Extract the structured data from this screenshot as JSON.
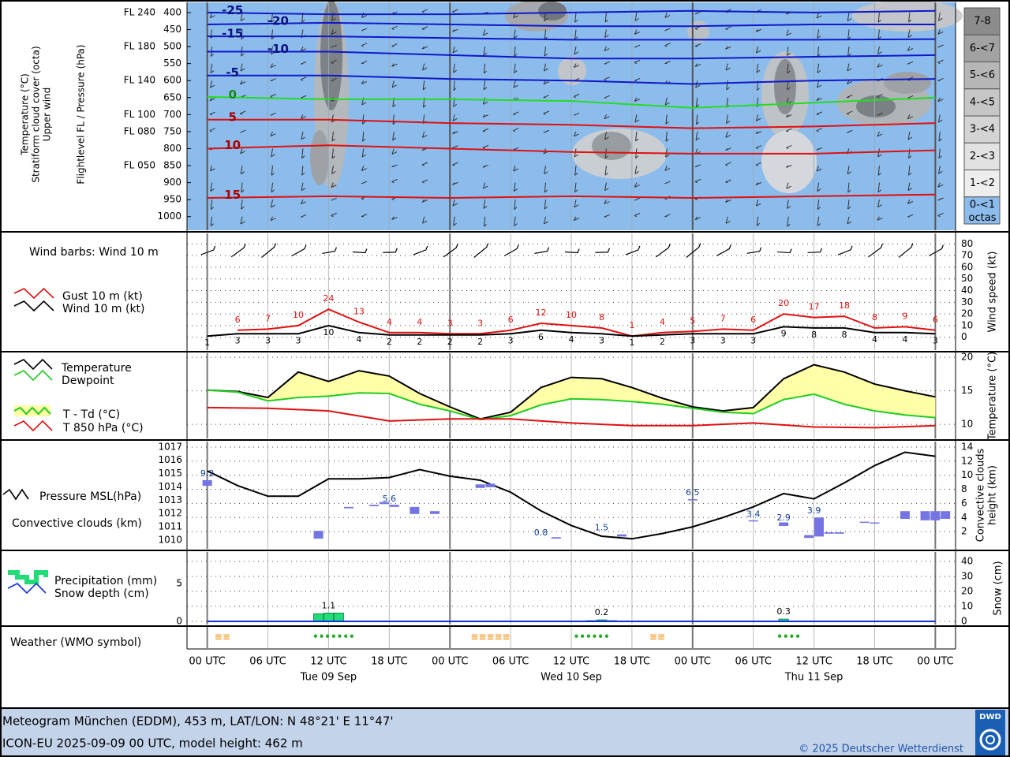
{
  "time_axis": {
    "xlim": [
      -2,
      74
    ],
    "xticks": [
      {
        "value": 0,
        "label": "00 UTC"
      },
      {
        "value": 6,
        "label": "06 UTC"
      },
      {
        "value": 12,
        "label": "12 UTC"
      },
      {
        "value": 18,
        "label": "18 UTC"
      },
      {
        "value": 24,
        "label": "00 UTC"
      },
      {
        "value": 30,
        "label": "06 UTC"
      },
      {
        "value": 36,
        "label": "12 UTC"
      },
      {
        "value": 42,
        "label": "18 UTC"
      },
      {
        "value": 48,
        "label": "00 UTC"
      },
      {
        "value": 54,
        "label": "06 UTC"
      },
      {
        "value": 60,
        "label": "12 UTC"
      },
      {
        "value": 66,
        "label": "18 UTC"
      },
      {
        "value": 72,
        "label": "00 UTC"
      }
    ],
    "dates": [
      {
        "value": 12,
        "label": "Tue 09 Sep"
      },
      {
        "value": 36,
        "label": "Wed 10 Sep"
      },
      {
        "value": 60,
        "label": "Thu 11 Sep"
      }
    ]
  },
  "chart_data": [
    {
      "type": "cross-section",
      "ylabels": [
        "Temperature (°C)",
        "Stratiform cloud cover (octa)",
        "Upper wind"
      ],
      "ylabel": "Flightlevel FL / Pressure (hPa)",
      "ylim": [
        1040,
        370
      ],
      "yticks": [
        400,
        450,
        500,
        550,
        600,
        650,
        700,
        750,
        800,
        850,
        900,
        950,
        1000
      ],
      "fl_ticks": [
        {
          "value": 400,
          "label": "FL 240"
        },
        {
          "value": 500,
          "label": "FL 180"
        },
        {
          "value": 600,
          "label": "FL 140"
        },
        {
          "value": 700,
          "label": "FL 100"
        },
        {
          "value": 750,
          "label": "FL 080"
        },
        {
          "value": 850,
          "label": "FL 050"
        }
      ],
      "x": [
        0,
        12,
        24,
        36,
        48,
        60,
        72
      ],
      "series": [
        {
          "name": -25,
          "color": "#1018c8",
          "values": [
            400,
            405,
            405,
            400,
            395,
            400,
            395
          ]
        },
        {
          "name": -20,
          "color": "#1018c8",
          "values": [
            435,
            430,
            435,
            440,
            440,
            435,
            435
          ]
        },
        {
          "name": -15,
          "color": "#1018c8",
          "values": [
            470,
            470,
            475,
            480,
            480,
            480,
            478
          ]
        },
        {
          "name": -10,
          "color": "#1018c8",
          "values": [
            515,
            515,
            525,
            535,
            535,
            530,
            525
          ]
        },
        {
          "name": -5,
          "color": "#1018c8",
          "values": [
            585,
            585,
            595,
            600,
            610,
            600,
            595
          ]
        },
        {
          "name": 0,
          "color": "#22dd22",
          "values": [
            648,
            655,
            655,
            660,
            680,
            665,
            650
          ]
        },
        {
          "name": 5,
          "color": "#e01010",
          "values": [
            715,
            715,
            725,
            730,
            740,
            735,
            725
          ]
        },
        {
          "name": 10,
          "color": "#e01010",
          "values": [
            800,
            790,
            800,
            810,
            815,
            815,
            805
          ]
        },
        {
          "name": 15,
          "color": "#e01010",
          "values": [
            945,
            940,
            945,
            940,
            945,
            940,
            935
          ]
        }
      ],
      "legend": {
        "title": "octas",
        "items": [
          {
            "label": "7-8",
            "color": "#8c8c8c"
          },
          {
            "label": "6-<7",
            "color": "#a2a2a2"
          },
          {
            "label": "5-<6",
            "color": "#b6b6b6"
          },
          {
            "label": "4-<5",
            "color": "#c6c6c6"
          },
          {
            "label": "3-<4",
            "color": "#d4d4d4"
          },
          {
            "label": "2-<3",
            "color": "#e2e2e2"
          },
          {
            "label": "1-<2",
            "color": "#eeeeee"
          },
          {
            "label": "0-<1",
            "color": "#8cbcec"
          }
        ]
      }
    },
    {
      "type": "line",
      "title": "Wind barbs: Wind 10 m",
      "ylabel": "Wind speed (kt)",
      "ylim": [
        -11,
        89
      ],
      "yticks": [
        0,
        10,
        20,
        30,
        40,
        50,
        60,
        70,
        80
      ],
      "grid": "y",
      "series": [
        {
          "name": "Gust 10 m (kt)",
          "color": "#e01010",
          "type": "line",
          "x": [
            3,
            6,
            9,
            12,
            15,
            18,
            21,
            24,
            27,
            30,
            33,
            36,
            39,
            42,
            45,
            48,
            51,
            54,
            57,
            60,
            63,
            66,
            69,
            72
          ],
          "values": [
            6,
            7,
            10,
            24,
            13,
            4,
            4,
            3,
            3,
            6,
            12,
            10,
            8,
            1,
            4,
            5,
            7,
            6,
            20,
            17,
            18,
            8,
            9,
            6
          ]
        },
        {
          "name": "Wind 10 m (kt)",
          "color": "#000000",
          "type": "line",
          "x": [
            0,
            3,
            6,
            9,
            12,
            15,
            18,
            21,
            24,
            27,
            30,
            33,
            36,
            39,
            42,
            45,
            48,
            51,
            54,
            57,
            60,
            63,
            66,
            69,
            72
          ],
          "values": [
            1,
            3,
            3,
            3,
            10,
            4,
            2,
            2,
            2,
            2,
            3,
            6,
            4,
            3,
            1,
            2,
            3,
            3,
            3,
            9,
            8,
            8,
            4,
            4,
            3
          ]
        }
      ]
    },
    {
      "type": "line",
      "ylabel": "Temperature (°C)",
      "ylim": [
        7.9,
        20.6
      ],
      "yticks": [
        10,
        15,
        20
      ],
      "grid": "y",
      "fill_between": {
        "name": "T - Td (°C)",
        "color": "#ffffa8"
      },
      "series": [
        {
          "name": "Temperature",
          "color": "#000000",
          "type": "line",
          "x": [
            0,
            3,
            6,
            9,
            12,
            15,
            18,
            21,
            24,
            27,
            30,
            33,
            36,
            39,
            42,
            45,
            48,
            51,
            54,
            57,
            60,
            63,
            66,
            69,
            72
          ],
          "values": [
            15.1,
            14.9,
            14.0,
            17.8,
            16.4,
            18.0,
            17.2,
            14.6,
            12.6,
            10.8,
            11.8,
            15.5,
            17.0,
            16.8,
            15.5,
            13.9,
            12.6,
            12.0,
            12.5,
            16.8,
            18.9,
            17.8,
            16.0,
            15.0,
            14.1
          ]
        },
        {
          "name": "Dewpoint",
          "color": "#22cc22",
          "type": "line",
          "x": [
            0,
            3,
            6,
            9,
            12,
            15,
            18,
            21,
            24,
            27,
            30,
            33,
            36,
            39,
            42,
            45,
            48,
            51,
            54,
            57,
            60,
            63,
            66,
            69,
            72
          ],
          "values": [
            15.1,
            14.8,
            13.5,
            14.0,
            14.2,
            14.7,
            14.6,
            13.0,
            12.0,
            10.7,
            11.3,
            12.9,
            13.8,
            13.7,
            13.4,
            13.0,
            12.4,
            11.8,
            11.6,
            13.7,
            14.5,
            13.0,
            12.0,
            11.4,
            11.0
          ]
        },
        {
          "name": "T 850 hPa (°C)",
          "color": "#e01010",
          "type": "line",
          "x": [
            0,
            6,
            12,
            18,
            24,
            30,
            36,
            42,
            48,
            54,
            60,
            66,
            72
          ],
          "values": [
            12.5,
            12.4,
            12.0,
            10.5,
            10.8,
            10.8,
            10.2,
            9.8,
            9.8,
            10.2,
            9.6,
            9.5,
            9.8
          ]
        }
      ]
    },
    {
      "type": "line",
      "ylim": [
        1009.35,
        1017.4
      ],
      "yticks": [
        1010,
        1011,
        1012,
        1013,
        1014,
        1015,
        1016,
        1017
      ],
      "y2lim": [
        -0.45,
        14.78
      ],
      "y2ticks": [
        2,
        4,
        6,
        8,
        10,
        12,
        14
      ],
      "y2label": [
        "Convective clouds",
        "height (km)"
      ],
      "grid": "y2",
      "series": [
        {
          "name": "Pressure MSL(hPa)",
          "color": "#000000",
          "type": "line",
          "x": [
            0,
            3,
            6,
            9,
            12,
            15,
            18,
            21,
            24,
            27,
            30,
            33,
            36,
            39,
            42,
            45,
            48,
            51,
            54,
            57,
            60,
            63,
            66,
            69,
            72
          ],
          "values": [
            1015.2,
            1014.1,
            1013.3,
            1013.3,
            1014.6,
            1014.6,
            1014.7,
            1015.3,
            1014.8,
            1014.5,
            1013.6,
            1012.2,
            1011.1,
            1010.3,
            1010.1,
            1010.5,
            1011.0,
            1011.7,
            1012.5,
            1013.5,
            1013.1,
            1014.3,
            1015.6,
            1016.6,
            1016.3
          ]
        },
        {
          "name": "Convective clouds (km)",
          "color": "#7474e4",
          "type": "bar",
          "axis": "y2",
          "x": [
            0,
            11,
            14,
            16.5,
            17.5,
            18.5,
            20.5,
            22.5,
            27,
            28,
            34.5,
            41,
            48,
            54,
            57,
            59.5,
            60.5,
            61.5,
            62.5,
            65,
            66,
            69,
            71,
            72,
            73
          ],
          "base": [
            8.5,
            1.0,
            5.3,
            5.6,
            5.9,
            5.5,
            4.5,
            4.5,
            8.2,
            8.3,
            1.0,
            1.3,
            6.5,
            3.5,
            2.8,
            1.1,
            1.3,
            1.7,
            1.7,
            3.3,
            3.2,
            3.8,
            3.6,
            3.6,
            3.8
          ],
          "values": [
            9.3,
            2.1,
            5.5,
            5.8,
            6.2,
            5.8,
            5.5,
            4.9,
            8.7,
            8.8,
            1.2,
            1.6,
            6.6,
            3.6,
            3.3,
            1.5,
            4.0,
            1.9,
            1.9,
            3.4,
            3.3,
            4.9,
            4.9,
            4.9,
            4.9
          ]
        }
      ],
      "labels": {
        "axis": "y2",
        "color": "#1040a0",
        "x": [
          0,
          18,
          33,
          39,
          48,
          54,
          57,
          60
        ],
        "values": [
          9.2,
          5.6,
          0.8,
          1.5,
          6.5,
          3.4,
          2.9,
          3.9
        ]
      }
    },
    {
      "type": "bar",
      "ylim": [
        -0.42,
        9.17
      ],
      "yticks": [
        0,
        5
      ],
      "y2lim": [
        -2.1,
        46.3
      ],
      "y2ticks": [
        0,
        10,
        20,
        30,
        40
      ],
      "y2label": "Snow (cm)",
      "grid": "y2",
      "series": [
        {
          "name": "Precipitation (mm)",
          "color": "#22dd77",
          "type": "bar",
          "x": [
            11,
            12,
            13,
            38,
            39,
            40,
            57
          ],
          "values": [
            1.0,
            1.1,
            1.1,
            0.1,
            0.2,
            0.1,
            0.3
          ]
        },
        {
          "name": "Snow depth (cm)",
          "color": "#1030e0",
          "type": "line",
          "axis": "y2",
          "x": [
            0,
            72
          ],
          "values": [
            0,
            0
          ]
        }
      ],
      "labels": {
        "color": "#000000",
        "x": [
          12,
          39,
          57
        ],
        "values": [
          1.1,
          0.2,
          0.3
        ]
      }
    },
    {
      "type": "symbols",
      "title": "Weather (WMO symbol)",
      "items": [
        {
          "text": "≡≡",
          "x": 1.5,
          "color": "#f0a030"
        },
        {
          "text": "•••••••",
          "x": 12.5,
          "color": "#22aa22"
        },
        {
          "text": "≡≡≡≡≡",
          "x": 28,
          "color": "#f0a030"
        },
        {
          "text": "••••••",
          "x": 38,
          "color": "#22aa22"
        },
        {
          "text": "≡≡",
          "x": 44.5,
          "color": "#f0a030"
        },
        {
          "text": "••••",
          "x": 57.5,
          "color": "#22aa22"
        }
      ]
    }
  ],
  "footer": {
    "title": "Meteogram München (EDDM), 453 m, LAT/LON: N 48°21' E 11°47'",
    "subtitle": "ICON-EU 2025-09-09 00 UTC, model height: 462 m",
    "copyright": "© 2025 Deutscher Wetterdienst",
    "logo": "DWD"
  }
}
